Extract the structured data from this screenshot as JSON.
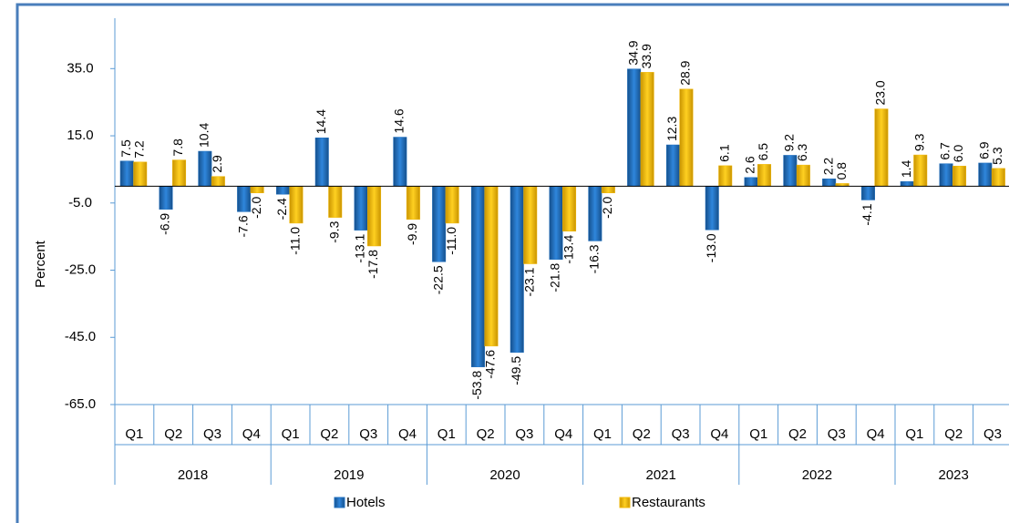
{
  "chart_data": {
    "type": "bar",
    "y_label": "Percent",
    "categories": [
      "Q1",
      "Q2",
      "Q3",
      "Q4",
      "Q1",
      "Q2",
      "Q3",
      "Q4",
      "Q1",
      "Q2",
      "Q3",
      "Q4",
      "Q1",
      "Q2",
      "Q3",
      "Q4",
      "Q1",
      "Q2",
      "Q3",
      "Q4",
      "Q1",
      "Q2",
      "Q3"
    ],
    "years": [
      "2018",
      "2019",
      "2020",
      "2021",
      "2022",
      "2023"
    ],
    "series": [
      {
        "name": "Hotels",
        "color": "#1f6fbf",
        "values": [
          7.5,
          -6.9,
          10.4,
          -7.6,
          -2.4,
          14.4,
          -13.1,
          14.6,
          -22.5,
          -53.8,
          -49.5,
          -21.8,
          -16.3,
          34.9,
          12.3,
          -13.0,
          2.6,
          9.2,
          2.2,
          -4.1,
          1.4,
          6.7,
          6.9
        ],
        "value_labels": [
          "7.5",
          "-6.9",
          "10.4",
          "-7.6",
          "-2.4",
          "14.4",
          "-13.1",
          "14.6",
          "-22.5",
          "-53.8",
          "-49.5",
          "-21.8",
          "-16.3",
          "34.9",
          "12.3",
          "-13.0",
          "2.6",
          "9.2",
          "2.2",
          "-4.1",
          "1.4",
          "6.7",
          "6.9"
        ]
      },
      {
        "name": "Restaurants",
        "color": "#f2b705",
        "values": [
          7.2,
          7.8,
          2.9,
          -2.0,
          -11.0,
          -9.3,
          -17.8,
          -9.9,
          -11.0,
          -47.6,
          -23.1,
          -13.4,
          -2.0,
          33.9,
          28.9,
          6.1,
          6.5,
          6.3,
          0.8,
          23.0,
          9.3,
          6.0,
          5.3
        ],
        "value_labels": [
          "7.2",
          "7.8",
          "2.9",
          "-2.0",
          "-11.0",
          "-9.3",
          "-17.8",
          "-9.9",
          "-11.0",
          "-47.6",
          "-23.1",
          "-13.4",
          "-2.0",
          "33.9",
          "28.9",
          "6.1",
          "6.5",
          "6.3",
          "0.8",
          "23.0",
          "9.3",
          "6.0",
          "5.3"
        ]
      }
    ],
    "ylim": [
      -65,
      50
    ],
    "yticks": [
      {
        "value": 35,
        "label": "35.0"
      },
      {
        "value": 15,
        "label": "15.0"
      },
      {
        "value": -5,
        "label": "-5.0"
      },
      {
        "value": -25,
        "label": "-25.0"
      },
      {
        "value": -45,
        "label": "-45.0"
      },
      {
        "value": -65,
        "label": "-65.0"
      }
    ],
    "legend": "bottom"
  }
}
